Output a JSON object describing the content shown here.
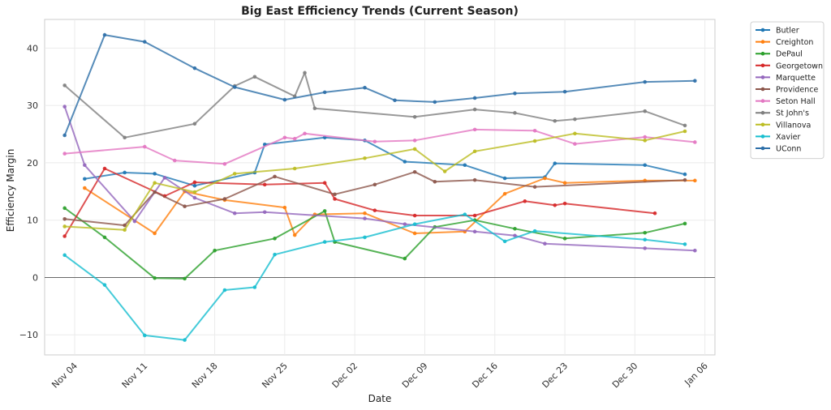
{
  "chart_data": {
    "type": "line",
    "title": "Big East Efficiency Trends (Current Season)",
    "xlabel": "Date",
    "ylabel": "Efficiency Margin",
    "x_axis": "date",
    "xlim": [
      "2024-11-01",
      "2025-01-07"
    ],
    "ylim": [
      -13.5,
      45
    ],
    "xticks": [
      {
        "date": "2024-11-04",
        "label": "Nov 04"
      },
      {
        "date": "2024-11-11",
        "label": "Nov 11"
      },
      {
        "date": "2024-11-18",
        "label": "Nov 18"
      },
      {
        "date": "2024-11-25",
        "label": "Nov 25"
      },
      {
        "date": "2024-12-02",
        "label": "Dec 02"
      },
      {
        "date": "2024-12-09",
        "label": "Dec 09"
      },
      {
        "date": "2024-12-16",
        "label": "Dec 16"
      },
      {
        "date": "2024-12-23",
        "label": "Dec 23"
      },
      {
        "date": "2024-12-30",
        "label": "Dec 30"
      },
      {
        "date": "2025-01-06",
        "label": "Jan 06"
      }
    ],
    "yticks": [
      -10,
      0,
      10,
      20,
      30,
      40
    ],
    "grid": true,
    "zero_line": true,
    "legend_position": "outside-top-right",
    "series": [
      {
        "name": "Butler",
        "color": "#1f77b4",
        "points": [
          [
            "2024-11-05",
            17.2
          ],
          [
            "2024-11-09",
            18.3
          ],
          [
            "2024-11-12",
            18.1
          ],
          [
            "2024-11-16",
            16.0
          ],
          [
            "2024-11-22",
            18.3
          ],
          [
            "2024-11-23",
            23.2
          ],
          [
            "2024-11-29",
            24.4
          ],
          [
            "2024-12-03",
            23.9
          ],
          [
            "2024-12-07",
            20.2
          ],
          [
            "2024-12-13",
            19.6
          ],
          [
            "2024-12-17",
            17.3
          ],
          [
            "2024-12-21",
            17.5
          ],
          [
            "2024-12-22",
            19.9
          ],
          [
            "2024-12-31",
            19.6
          ],
          [
            "2025-01-04",
            18.0
          ]
        ]
      },
      {
        "name": "Creighton",
        "color": "#ff7f0e",
        "points": [
          [
            "2024-11-05",
            15.6
          ],
          [
            "2024-11-12",
            7.7
          ],
          [
            "2024-11-15",
            15.0
          ],
          [
            "2024-11-19",
            13.5
          ],
          [
            "2024-11-25",
            12.2
          ],
          [
            "2024-11-26",
            7.4
          ],
          [
            "2024-11-28",
            11.0
          ],
          [
            "2024-12-03",
            11.2
          ],
          [
            "2024-12-08",
            7.7
          ],
          [
            "2024-12-13",
            8.0
          ],
          [
            "2024-12-17",
            14.6
          ],
          [
            "2024-12-21",
            17.3
          ],
          [
            "2024-12-23",
            16.5
          ],
          [
            "2024-12-31",
            16.9
          ],
          [
            "2025-01-05",
            16.9
          ]
        ]
      },
      {
        "name": "DePaul",
        "color": "#2ca02c",
        "points": [
          [
            "2024-11-03",
            12.1
          ],
          [
            "2024-11-07",
            7.0
          ],
          [
            "2024-11-12",
            -0.1
          ],
          [
            "2024-11-15",
            -0.2
          ],
          [
            "2024-11-18",
            4.7
          ],
          [
            "2024-11-24",
            6.8
          ],
          [
            "2024-11-29",
            11.6
          ],
          [
            "2024-11-30",
            6.2
          ],
          [
            "2024-12-07",
            3.3
          ],
          [
            "2024-12-10",
            8.8
          ],
          [
            "2024-12-14",
            10.0
          ],
          [
            "2024-12-18",
            8.5
          ],
          [
            "2024-12-23",
            6.8
          ],
          [
            "2024-12-31",
            7.8
          ],
          [
            "2025-01-04",
            9.4
          ]
        ]
      },
      {
        "name": "Georgetown",
        "color": "#d62728",
        "points": [
          [
            "2024-11-03",
            7.2
          ],
          [
            "2024-11-07",
            19.0
          ],
          [
            "2024-11-13",
            14.2
          ],
          [
            "2024-11-16",
            16.6
          ],
          [
            "2024-11-23",
            16.2
          ],
          [
            "2024-11-29",
            16.5
          ],
          [
            "2024-11-30",
            13.7
          ],
          [
            "2024-12-04",
            11.7
          ],
          [
            "2024-12-08",
            10.8
          ],
          [
            "2024-12-14",
            10.8
          ],
          [
            "2024-12-19",
            13.3
          ],
          [
            "2024-12-22",
            12.6
          ],
          [
            "2024-12-23",
            12.9
          ],
          [
            "2025-01-01",
            11.2
          ]
        ]
      },
      {
        "name": "Marquette",
        "color": "#9467bd",
        "points": [
          [
            "2024-11-03",
            29.8
          ],
          [
            "2024-11-05",
            19.6
          ],
          [
            "2024-11-10",
            9.8
          ],
          [
            "2024-11-13",
            17.4
          ],
          [
            "2024-11-16",
            13.9
          ],
          [
            "2024-11-20",
            11.2
          ],
          [
            "2024-11-23",
            11.4
          ],
          [
            "2024-12-03",
            10.3
          ],
          [
            "2024-12-07",
            9.3
          ],
          [
            "2024-12-14",
            8.0
          ],
          [
            "2024-12-18",
            7.3
          ],
          [
            "2024-12-21",
            5.9
          ],
          [
            "2024-12-31",
            5.1
          ],
          [
            "2025-01-05",
            4.7
          ]
        ]
      },
      {
        "name": "Providence",
        "color": "#8c564b",
        "points": [
          [
            "2024-11-03",
            10.2
          ],
          [
            "2024-11-09",
            9.1
          ],
          [
            "2024-11-12",
            14.9
          ],
          [
            "2024-11-15",
            12.4
          ],
          [
            "2024-11-19",
            13.7
          ],
          [
            "2024-11-24",
            17.6
          ],
          [
            "2024-11-30",
            14.5
          ],
          [
            "2024-12-04",
            16.2
          ],
          [
            "2024-12-08",
            18.4
          ],
          [
            "2024-12-10",
            16.7
          ],
          [
            "2024-12-14",
            17.0
          ],
          [
            "2024-12-20",
            15.8
          ],
          [
            "2025-01-04",
            17.0
          ]
        ]
      },
      {
        "name": "Seton Hall",
        "color": "#e377c2",
        "points": [
          [
            "2024-11-03",
            21.6
          ],
          [
            "2024-11-11",
            22.8
          ],
          [
            "2024-11-14",
            20.4
          ],
          [
            "2024-11-19",
            19.8
          ],
          [
            "2024-11-25",
            24.4
          ],
          [
            "2024-11-26",
            24.2
          ],
          [
            "2024-11-27",
            25.1
          ],
          [
            "2024-12-04",
            23.7
          ],
          [
            "2024-12-08",
            23.9
          ],
          [
            "2024-12-14",
            25.8
          ],
          [
            "2024-12-20",
            25.6
          ],
          [
            "2024-12-24",
            23.3
          ],
          [
            "2024-12-31",
            24.5
          ],
          [
            "2025-01-05",
            23.6
          ]
        ]
      },
      {
        "name": "St John's",
        "color": "#7f7f7f",
        "points": [
          [
            "2024-11-03",
            33.5
          ],
          [
            "2024-11-09",
            24.4
          ],
          [
            "2024-11-16",
            26.8
          ],
          [
            "2024-11-20",
            33.4
          ],
          [
            "2024-11-22",
            35.0
          ],
          [
            "2024-11-26",
            31.6
          ],
          [
            "2024-11-27",
            35.7
          ],
          [
            "2024-11-28",
            29.5
          ],
          [
            "2024-12-08",
            28.0
          ],
          [
            "2024-12-14",
            29.3
          ],
          [
            "2024-12-18",
            28.7
          ],
          [
            "2024-12-22",
            27.3
          ],
          [
            "2024-12-24",
            27.6
          ],
          [
            "2024-12-31",
            29.0
          ],
          [
            "2025-01-04",
            26.5
          ]
        ]
      },
      {
        "name": "Villanova",
        "color": "#bcbd22",
        "points": [
          [
            "2024-11-03",
            8.9
          ],
          [
            "2024-11-09",
            8.3
          ],
          [
            "2024-11-12",
            16.5
          ],
          [
            "2024-11-16",
            14.9
          ],
          [
            "2024-11-20",
            18.1
          ],
          [
            "2024-11-26",
            19.0
          ],
          [
            "2024-12-03",
            20.8
          ],
          [
            "2024-12-08",
            22.4
          ],
          [
            "2024-12-11",
            18.5
          ],
          [
            "2024-12-14",
            22.0
          ],
          [
            "2024-12-20",
            23.8
          ],
          [
            "2024-12-24",
            25.1
          ],
          [
            "2024-12-31",
            23.9
          ],
          [
            "2025-01-04",
            25.5
          ]
        ]
      },
      {
        "name": "Xavier",
        "color": "#17becf",
        "points": [
          [
            "2024-11-03",
            3.9
          ],
          [
            "2024-11-07",
            -1.3
          ],
          [
            "2024-11-11",
            -10.1
          ],
          [
            "2024-11-15",
            -10.9
          ],
          [
            "2024-11-19",
            -2.2
          ],
          [
            "2024-11-22",
            -1.7
          ],
          [
            "2024-11-24",
            4.0
          ],
          [
            "2024-11-29",
            6.2
          ],
          [
            "2024-12-03",
            7.0
          ],
          [
            "2024-12-08",
            9.3
          ],
          [
            "2024-12-13",
            11.0
          ],
          [
            "2024-12-17",
            6.3
          ],
          [
            "2024-12-20",
            8.1
          ],
          [
            "2024-12-31",
            6.6
          ],
          [
            "2025-01-04",
            5.8
          ]
        ]
      },
      {
        "name": "UConn",
        "color": "#2d6fa8",
        "points": [
          [
            "2024-11-03",
            24.8
          ],
          [
            "2024-11-07",
            42.3
          ],
          [
            "2024-11-11",
            41.1
          ],
          [
            "2024-11-16",
            36.5
          ],
          [
            "2024-11-20",
            33.2
          ],
          [
            "2024-11-25",
            31.0
          ],
          [
            "2024-11-29",
            32.3
          ],
          [
            "2024-12-03",
            33.1
          ],
          [
            "2024-12-06",
            30.9
          ],
          [
            "2024-12-10",
            30.6
          ],
          [
            "2024-12-14",
            31.3
          ],
          [
            "2024-12-18",
            32.1
          ],
          [
            "2024-12-23",
            32.4
          ],
          [
            "2024-12-31",
            34.1
          ],
          [
            "2025-01-05",
            34.3
          ]
        ]
      }
    ]
  }
}
